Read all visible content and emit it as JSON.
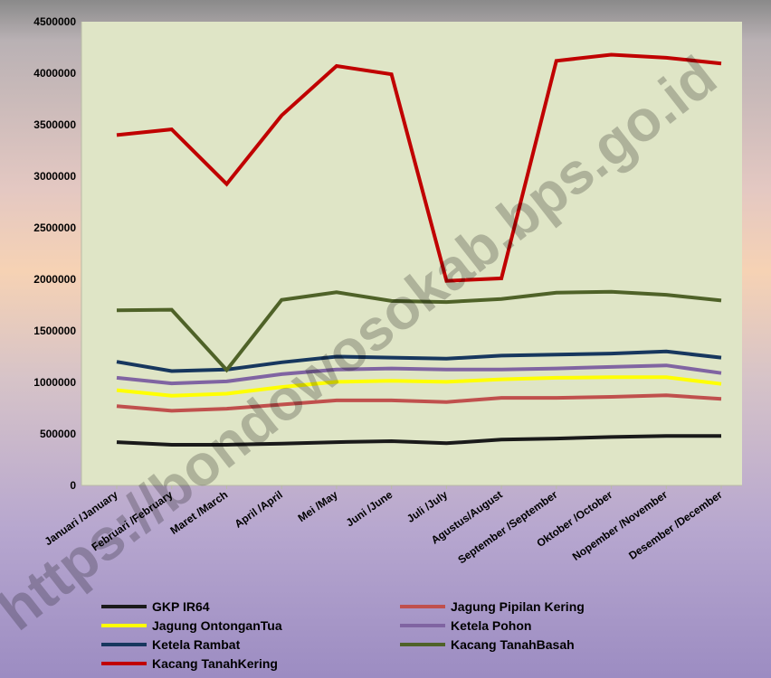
{
  "chart_data": {
    "type": "line",
    "title": "",
    "xlabel": "",
    "ylabel": "",
    "ylim": [
      0,
      4500000
    ],
    "y_ticks": [
      0,
      500000,
      1000000,
      1500000,
      2000000,
      2500000,
      3000000,
      3500000,
      4000000,
      4500000
    ],
    "grid": false,
    "legend_position": "bottom",
    "plot_background": "#dfe5c6",
    "categories": [
      "Januari /January",
      "Februari /February",
      "Maret /March",
      "April /April",
      "Mei  /May",
      "Juni /June",
      "Juli /July",
      "Agustus/August",
      "September /September",
      "Oktober /October",
      "Nopember /November",
      "Desember /December"
    ],
    "series": [
      {
        "name": "GKP IR64",
        "color": "#1a1a1a",
        "values": [
          420000,
          395000,
          395000,
          405000,
          420000,
          430000,
          410000,
          445000,
          455000,
          470000,
          480000,
          480000
        ]
      },
      {
        "name": "Jagung Pipilan Kering",
        "color": "#c0504d",
        "values": [
          770000,
          725000,
          745000,
          785000,
          825000,
          825000,
          810000,
          850000,
          850000,
          860000,
          875000,
          840000
        ]
      },
      {
        "name": "Jagung OntonganTua",
        "color": "#ffff00",
        "values": [
          925000,
          870000,
          890000,
          955000,
          1005000,
          1015000,
          1005000,
          1030000,
          1045000,
          1050000,
          1050000,
          985000
        ]
      },
      {
        "name": "Ketela Pohon",
        "color": "#8064a2",
        "values": [
          1045000,
          990000,
          1010000,
          1080000,
          1125000,
          1135000,
          1125000,
          1125000,
          1135000,
          1150000,
          1165000,
          1090000
        ]
      },
      {
        "name": "Ketela Rambat",
        "color": "#17375e",
        "values": [
          1200000,
          1110000,
          1125000,
          1195000,
          1250000,
          1240000,
          1230000,
          1260000,
          1270000,
          1280000,
          1300000,
          1240000
        ]
      },
      {
        "name": "Kacang TanahBasah",
        "color": "#4f6228",
        "values": [
          1700000,
          1705000,
          1120000,
          1800000,
          1875000,
          1790000,
          1780000,
          1810000,
          1870000,
          1880000,
          1850000,
          1795000
        ]
      },
      {
        "name": "Kacang TanahKering",
        "color": "#c00000",
        "values": [
          3400000,
          3455000,
          2925000,
          3590000,
          4070000,
          3990000,
          1985000,
          2010000,
          4120000,
          4180000,
          4150000,
          4095000
        ]
      }
    ]
  },
  "watermark": "https://bondowosokab.bps.go.id"
}
